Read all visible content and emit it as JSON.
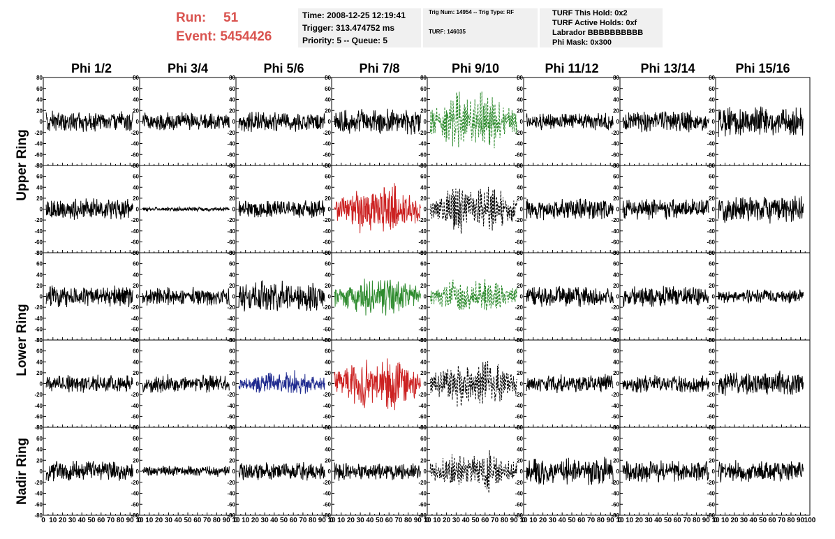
{
  "header": {
    "run_label": "Run:",
    "run_value": "51",
    "event_label": "Event:",
    "event_value": "5454426"
  },
  "time_box": {
    "time": "Time: 2008-12-25 12:19:41",
    "trigger": "Trigger: 313.474752 ms",
    "priority": "Priority: 5 -- Queue: 5"
  },
  "trig_box": {
    "line1": "Trig Num: 14954 -- Trig Type: RF",
    "line2": "TURF: 146035"
  },
  "turf_box": {
    "hold": "TURF This Hold: 0x2",
    "active": "TURF Active Holds: 0xf",
    "labrador": "Labrador BBBBBBBBBB",
    "phimask": "Phi Mask: 0x300"
  },
  "chart_data": {
    "type": "line",
    "columns": [
      "Phi 1/2",
      "Phi 3/4",
      "Phi 5/6",
      "Phi 7/8",
      "Phi 9/10",
      "Phi 11/12",
      "Phi 13/14",
      "Phi 15/16"
    ],
    "ring_labels": [
      "Upper Ring",
      "Lower Ring",
      "Nadir Ring"
    ],
    "xlim": [
      0,
      100
    ],
    "ylim": [
      -80,
      80
    ],
    "x_ticks": [
      "0",
      "10",
      "20",
      "30",
      "40",
      "50",
      "60",
      "70",
      "80",
      "90",
      "10"
    ],
    "x_ticks_last": [
      "0",
      "10",
      "20",
      "30",
      "40",
      "50",
      "60",
      "70",
      "80",
      "90",
      "100"
    ],
    "y_ticks": [
      "80",
      "60",
      "40",
      "20",
      "0",
      "-20",
      "-40",
      "-60",
      "-80"
    ],
    "rows": [
      [
        {
          "amp": 14,
          "color": "#000000",
          "dashed": false,
          "env": false
        },
        {
          "amp": 12,
          "color": "#000000",
          "dashed": false,
          "env": false
        },
        {
          "amp": 14,
          "color": "#000000",
          "dashed": false,
          "env": false
        },
        {
          "amp": 16,
          "color": "#000000",
          "dashed": false,
          "env": false
        },
        {
          "amp": 40,
          "color": "#2e8b2e",
          "dashed": true,
          "env": true
        },
        {
          "amp": 12,
          "color": "#000000",
          "dashed": false,
          "env": false
        },
        {
          "amp": 14,
          "color": "#000000",
          "dashed": false,
          "env": false
        },
        {
          "amp": 20,
          "color": "#000000",
          "dashed": false,
          "env": false
        }
      ],
      [
        {
          "amp": 14,
          "color": "#000000",
          "dashed": false,
          "env": false
        },
        {
          "amp": 3,
          "color": "#000000",
          "dashed": false,
          "env": false
        },
        {
          "amp": 12,
          "color": "#000000",
          "dashed": false,
          "env": false
        },
        {
          "amp": 36,
          "color": "#cc2222",
          "dashed": false,
          "env": true
        },
        {
          "amp": 34,
          "color": "#000000",
          "dashed": true,
          "env": true
        },
        {
          "amp": 14,
          "color": "#000000",
          "dashed": false,
          "env": false
        },
        {
          "amp": 14,
          "color": "#000000",
          "dashed": false,
          "env": false
        },
        {
          "amp": 18,
          "color": "#000000",
          "dashed": false,
          "env": false
        }
      ],
      [
        {
          "amp": 14,
          "color": "#000000",
          "dashed": false,
          "env": false
        },
        {
          "amp": 12,
          "color": "#000000",
          "dashed": false,
          "env": false
        },
        {
          "amp": 20,
          "color": "#000000",
          "dashed": false,
          "env": false
        },
        {
          "amp": 28,
          "color": "#2e8b2e",
          "dashed": false,
          "env": true
        },
        {
          "amp": 26,
          "color": "#2e8b2e",
          "dashed": true,
          "env": true
        },
        {
          "amp": 14,
          "color": "#000000",
          "dashed": false,
          "env": false
        },
        {
          "amp": 14,
          "color": "#000000",
          "dashed": false,
          "env": false
        },
        {
          "amp": 9,
          "color": "#000000",
          "dashed": false,
          "env": false
        }
      ],
      [
        {
          "amp": 12,
          "color": "#000000",
          "dashed": false,
          "env": false
        },
        {
          "amp": 12,
          "color": "#000000",
          "dashed": false,
          "env": false
        },
        {
          "amp": 18,
          "color": "#1f2a8f",
          "dashed": false,
          "env": true
        },
        {
          "amp": 38,
          "color": "#cc2222",
          "dashed": false,
          "env": true
        },
        {
          "amp": 32,
          "color": "#000000",
          "dashed": true,
          "env": true
        },
        {
          "amp": 12,
          "color": "#000000",
          "dashed": false,
          "env": false
        },
        {
          "amp": 12,
          "color": "#000000",
          "dashed": false,
          "env": false
        },
        {
          "amp": 16,
          "color": "#000000",
          "dashed": false,
          "env": false
        }
      ],
      [
        {
          "amp": 14,
          "color": "#000000",
          "dashed": false,
          "env": false
        },
        {
          "amp": 7,
          "color": "#000000",
          "dashed": false,
          "env": false
        },
        {
          "amp": 12,
          "color": "#000000",
          "dashed": false,
          "env": false
        },
        {
          "amp": 12,
          "color": "#000000",
          "dashed": false,
          "env": false
        },
        {
          "amp": 28,
          "color": "#000000",
          "dashed": true,
          "env": true
        },
        {
          "amp": 18,
          "color": "#000000",
          "dashed": false,
          "env": false
        },
        {
          "amp": 14,
          "color": "#000000",
          "dashed": false,
          "env": false
        },
        {
          "amp": 14,
          "color": "#000000",
          "dashed": false,
          "env": false
        }
      ]
    ]
  }
}
